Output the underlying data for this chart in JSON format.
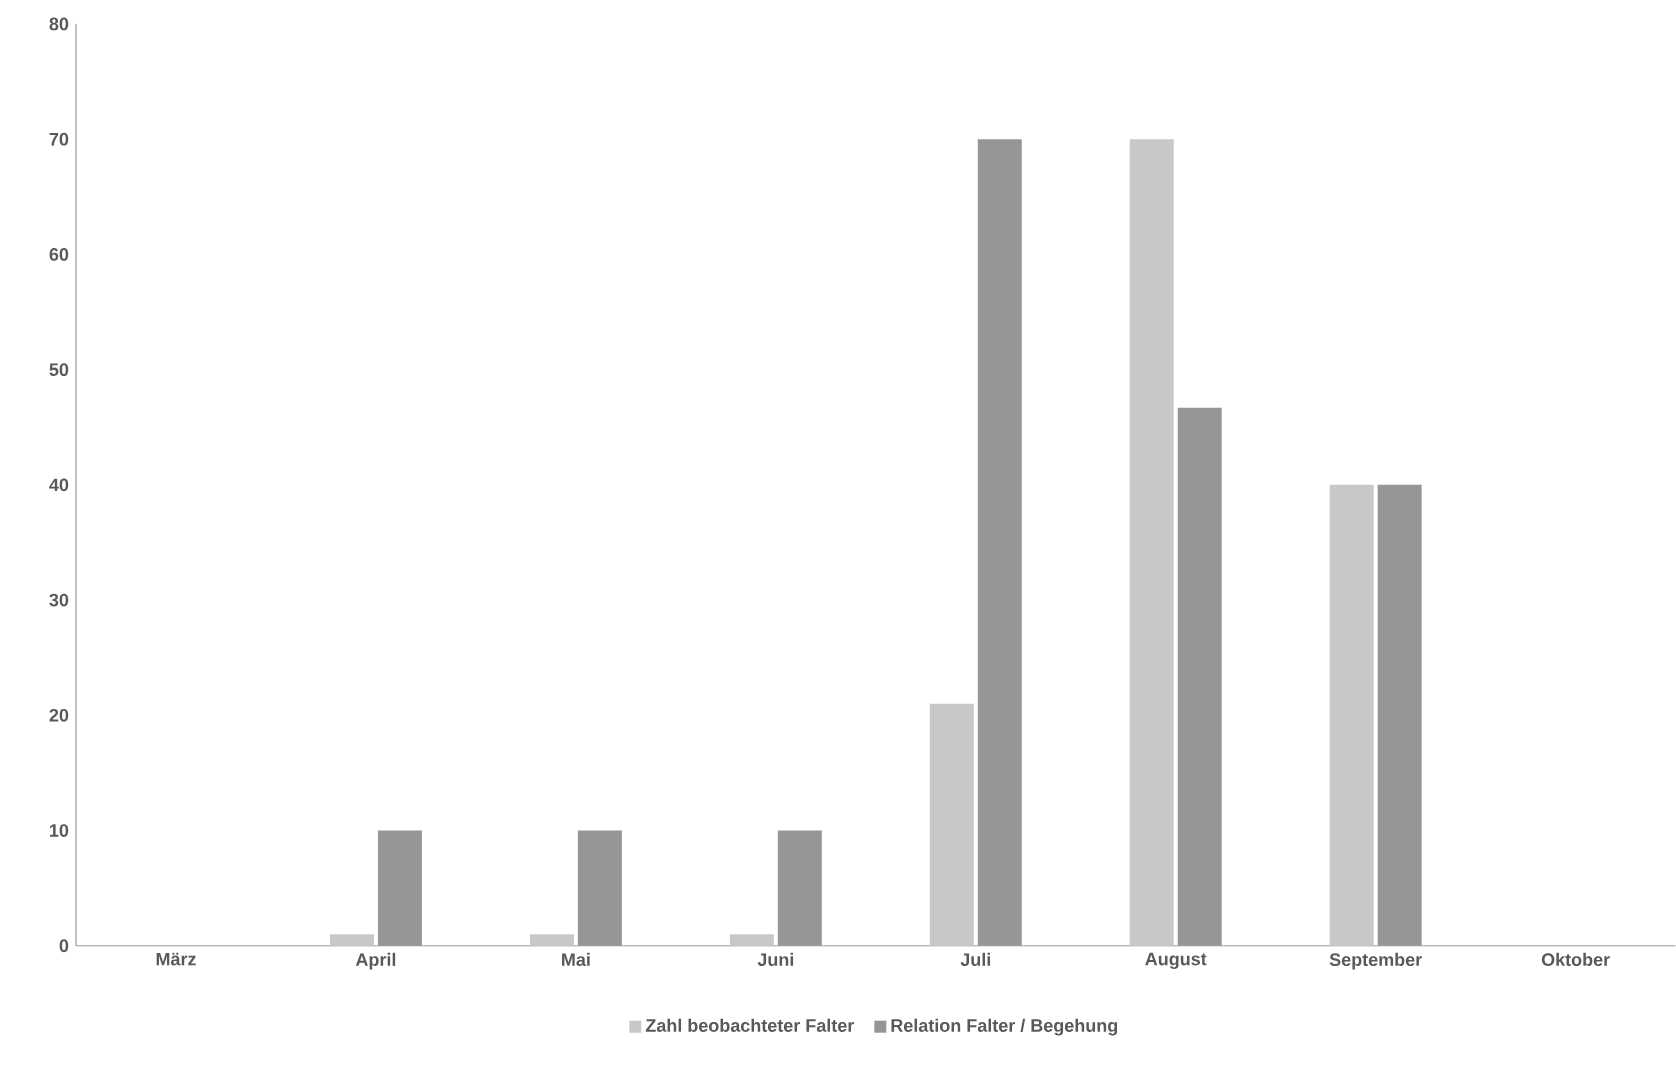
{
  "chart_data": {
    "type": "bar",
    "categories": [
      "März",
      "April",
      "Mai",
      "Juni",
      "Juli",
      "August",
      "September",
      "Oktober"
    ],
    "series": [
      {
        "name": "Zahl beobachteter Falter",
        "color": "#c8c8c8",
        "values": [
          0,
          1,
          1,
          1,
          21,
          70,
          40,
          0
        ]
      },
      {
        "name": "Relation Falter / Begehung",
        "color": "#969696",
        "values": [
          0,
          10,
          10,
          10,
          70,
          46.7,
          40,
          0
        ]
      }
    ],
    "ylim": [
      0,
      80
    ],
    "yticks": [
      0,
      10,
      20,
      30,
      40,
      50,
      60,
      70,
      80
    ],
    "grid": false,
    "legend": "bottom"
  }
}
